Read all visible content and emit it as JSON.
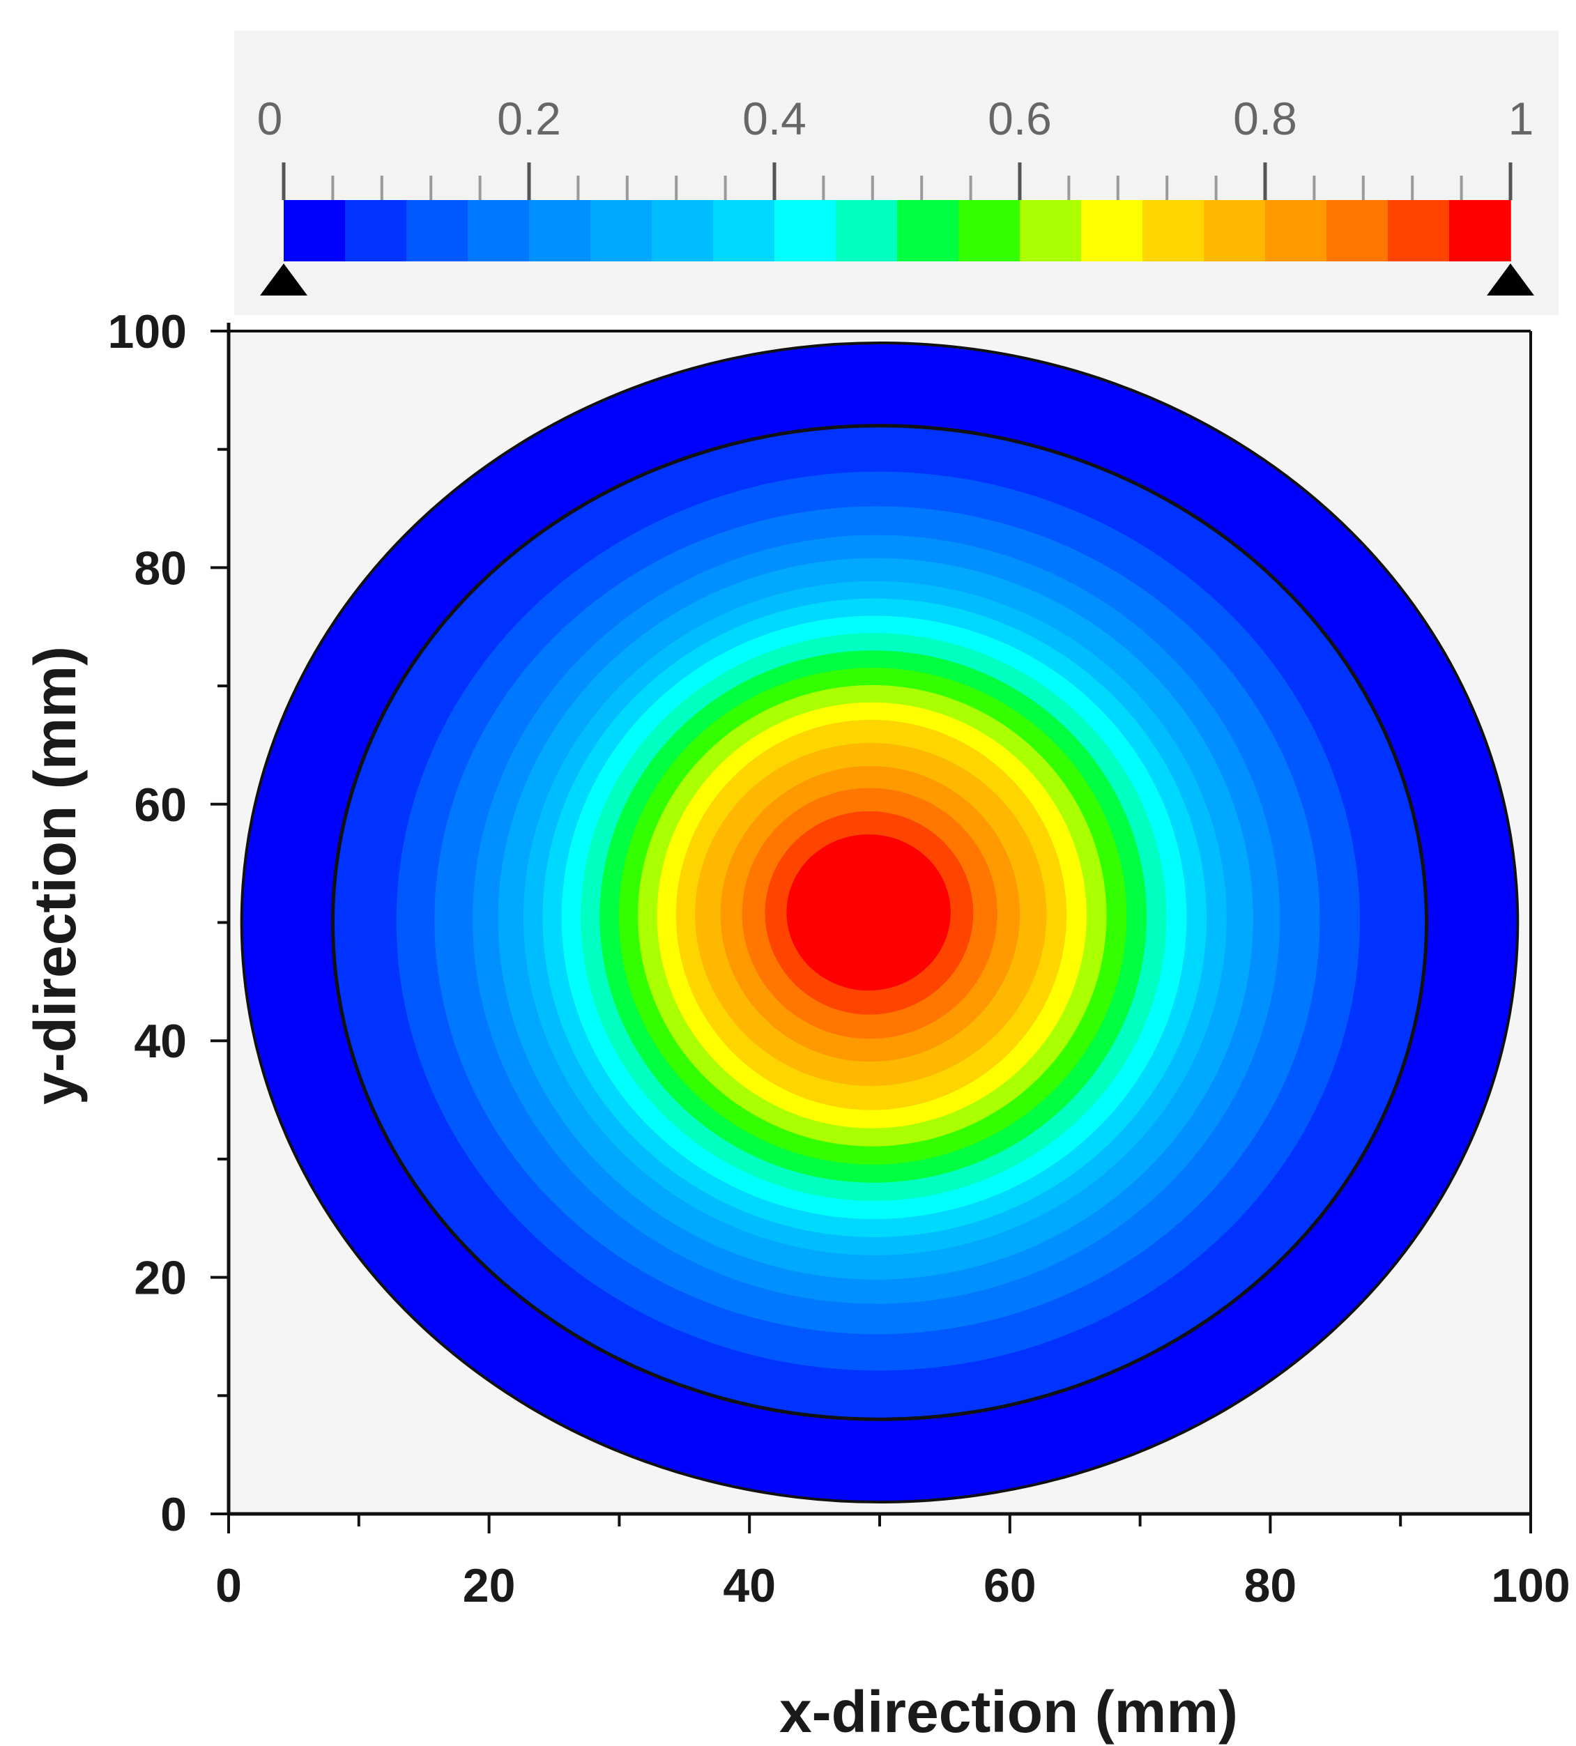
{
  "chart_data": {
    "type": "heatmap",
    "title": "",
    "xlabel": "x-direction (mm)",
    "ylabel": "y-direction (mm)",
    "xlim": [
      0,
      100
    ],
    "ylim": [
      0,
      100
    ],
    "x_ticks": [
      {
        "value": 0,
        "label": "0"
      },
      {
        "value": 20,
        "label": "20"
      },
      {
        "value": 40,
        "label": "40"
      },
      {
        "value": 60,
        "label": "60"
      },
      {
        "value": 80,
        "label": "80"
      },
      {
        "value": 100,
        "label": "100"
      }
    ],
    "x_minor_step": 10,
    "y_ticks": [
      {
        "value": 0,
        "label": "0"
      },
      {
        "value": 20,
        "label": "20"
      },
      {
        "value": 40,
        "label": "40"
      },
      {
        "value": 60,
        "label": "60"
      },
      {
        "value": 80,
        "label": "80"
      },
      {
        "value": 100,
        "label": "100"
      }
    ],
    "y_minor_step": 10,
    "grid": false,
    "legend": "colorbar-top",
    "colorbar": {
      "min": 0,
      "max": 1,
      "ticks": [
        {
          "value": 0,
          "label": "0"
        },
        {
          "value": 0.2,
          "label": "0.2"
        },
        {
          "value": 0.4,
          "label": "0.4"
        },
        {
          "value": 0.6,
          "label": "0.6"
        },
        {
          "value": 0.8,
          "label": "0.8"
        },
        {
          "value": 1,
          "label": "1"
        }
      ],
      "minor_step": 0.04,
      "colors": [
        "#0000ff",
        "#0033ff",
        "#0059ff",
        "#0078ff",
        "#0090ff",
        "#00a8ff",
        "#00bdff",
        "#00d9ff",
        "#00ffff",
        "#00ffc0",
        "#00ff40",
        "#33ff00",
        "#aaff00",
        "#ffff00",
        "#ffd500",
        "#ffb800",
        "#ff9900",
        "#ff7700",
        "#ff4400",
        "#ff0000"
      ]
    },
    "field": {
      "peak_value": 1.0,
      "peak_x": 49,
      "peak_y": 51,
      "domain_center": [
        50,
        50
      ],
      "domain_radius": 49,
      "outer_band_value": 0,
      "inner_ring_radius": 42,
      "level_radii": [
        {
          "value": 0.05,
          "r_x": 42,
          "r_y": 42
        },
        {
          "value": 0.1,
          "r_x": 37,
          "r_y": 38
        },
        {
          "value": 0.15,
          "r_x": 34,
          "r_y": 35
        },
        {
          "value": 0.2,
          "r_x": 31,
          "r_y": 32.5
        },
        {
          "value": 0.25,
          "r_x": 29,
          "r_y": 30.5
        },
        {
          "value": 0.3,
          "r_x": 27,
          "r_y": 28.5
        },
        {
          "value": 0.35,
          "r_x": 25.5,
          "r_y": 27
        },
        {
          "value": 0.4,
          "r_x": 24,
          "r_y": 25.5
        },
        {
          "value": 0.45,
          "r_x": 22.5,
          "r_y": 24
        },
        {
          "value": 0.5,
          "r_x": 21,
          "r_y": 22.5
        },
        {
          "value": 0.55,
          "r_x": 19.5,
          "r_y": 21
        },
        {
          "value": 0.6,
          "r_x": 18,
          "r_y": 19.5
        },
        {
          "value": 0.65,
          "r_x": 16.5,
          "r_y": 18
        },
        {
          "value": 0.7,
          "r_x": 15,
          "r_y": 16.5
        },
        {
          "value": 0.75,
          "r_x": 13.5,
          "r_y": 14.5
        },
        {
          "value": 0.8,
          "r_x": 11.5,
          "r_y": 12.5
        },
        {
          "value": 0.85,
          "r_x": 9.8,
          "r_y": 10.6
        },
        {
          "value": 0.9,
          "r_x": 8,
          "r_y": 8.6
        },
        {
          "value": 0.95,
          "r_x": 6.3,
          "r_y": 6.6
        }
      ]
    }
  }
}
